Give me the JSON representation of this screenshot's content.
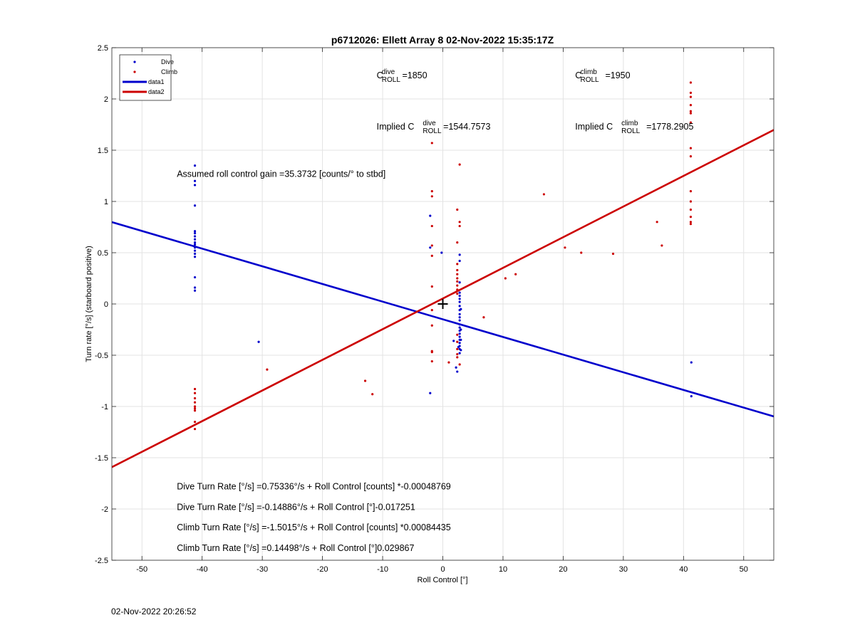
{
  "chart_data": {
    "type": "scatter",
    "title": "p6712026: Ellett Array 8 02-Nov-2022 15:35:17Z",
    "xlabel": "Roll Control [°]",
    "ylabel": "Turn rate [°/s] (starboard positive)",
    "xlim": [
      -55,
      55
    ],
    "ylim": [
      -2.5,
      2.5
    ],
    "grid": true,
    "legend_position": "top-left",
    "xticks": [
      -50,
      -40,
      -30,
      -20,
      -10,
      0,
      10,
      20,
      30,
      40,
      50
    ],
    "yticks": [
      -2.5,
      -2,
      -1.5,
      -1,
      -0.5,
      0,
      0.5,
      1,
      1.5,
      2,
      2.5
    ],
    "xtick_labels": [
      "-50",
      "-40",
      "-30",
      "-20",
      "-10",
      "0",
      "10",
      "20",
      "30",
      "40",
      "50"
    ],
    "ytick_labels": [
      "-2.5",
      "-2",
      "-1.5",
      "-1",
      "-0.5",
      "0",
      "0.5",
      "1",
      "1.5",
      "2",
      "2.5"
    ],
    "legend": [
      {
        "label": "Dive",
        "kind": "dot",
        "color": "#0000cc"
      },
      {
        "label": "Climb",
        "kind": "dot",
        "color": "#cc0000"
      },
      {
        "label": "data1",
        "kind": "line",
        "color": "#0000cc"
      },
      {
        "label": "data2",
        "kind": "line",
        "color": "#cc0000"
      }
    ],
    "series": [
      {
        "name": "Dive",
        "kind": "scatter",
        "color": "#0000cc",
        "points": [
          [
            -41.2,
            1.35
          ],
          [
            -41.2,
            1.2
          ],
          [
            -41.2,
            1.16
          ],
          [
            -41.2,
            0.96
          ],
          [
            -41.2,
            0.71
          ],
          [
            -41.2,
            0.69
          ],
          [
            -41.2,
            0.66
          ],
          [
            -41.2,
            0.63
          ],
          [
            -41.2,
            0.6
          ],
          [
            -41.2,
            0.58
          ],
          [
            -41.2,
            0.55
          ],
          [
            -41.2,
            0.52
          ],
          [
            -41.2,
            0.49
          ],
          [
            -41.2,
            0.46
          ],
          [
            -41.2,
            0.26
          ],
          [
            -41.2,
            0.16
          ],
          [
            -41.2,
            0.13
          ],
          [
            -30.6,
            -0.37
          ],
          [
            -2.1,
            0.86
          ],
          [
            -2.1,
            0.55
          ],
          [
            -2.1,
            -0.87
          ],
          [
            -0.2,
            0.5
          ],
          [
            1.8,
            -0.36
          ],
          [
            2.2,
            -0.62
          ],
          [
            2.4,
            -0.66
          ],
          [
            2.6,
            -0.42
          ],
          [
            2.8,
            0.48
          ],
          [
            2.8,
            0.42
          ],
          [
            2.8,
            0.21
          ],
          [
            2.8,
            0.11
          ],
          [
            2.8,
            0.08
          ],
          [
            2.8,
            0.05
          ],
          [
            2.8,
            0.02
          ],
          [
            2.8,
            -0.02
          ],
          [
            2.8,
            -0.06
          ],
          [
            2.8,
            -0.1
          ],
          [
            2.8,
            -0.13
          ],
          [
            2.8,
            -0.16
          ],
          [
            2.8,
            -0.2
          ],
          [
            2.8,
            -0.23
          ],
          [
            2.8,
            -0.26
          ],
          [
            2.8,
            -0.29
          ],
          [
            2.8,
            -0.32
          ],
          [
            2.8,
            -0.35
          ],
          [
            2.8,
            -0.38
          ],
          [
            2.8,
            -0.41
          ],
          [
            2.8,
            -0.44
          ],
          [
            2.8,
            -0.48
          ],
          [
            3.0,
            -0.05
          ],
          [
            3.0,
            -0.25
          ],
          [
            3.0,
            -0.35
          ],
          [
            3.0,
            -0.45
          ],
          [
            41.3,
            -0.57
          ],
          [
            41.3,
            -0.9
          ]
        ]
      },
      {
        "name": "Climb",
        "kind": "scatter",
        "color": "#cc0000",
        "points": [
          [
            -41.2,
            -0.83
          ],
          [
            -41.2,
            -0.87
          ],
          [
            -41.2,
            -0.92
          ],
          [
            -41.2,
            -0.96
          ],
          [
            -41.2,
            -1.0
          ],
          [
            -41.2,
            -1.02
          ],
          [
            -41.2,
            -1.04
          ],
          [
            -41.2,
            -1.15
          ],
          [
            -41.2,
            -1.22
          ],
          [
            -29.2,
            -0.64
          ],
          [
            -12.9,
            -0.75
          ],
          [
            -11.7,
            -0.88
          ],
          [
            -1.8,
            1.57
          ],
          [
            -1.8,
            1.1
          ],
          [
            -1.8,
            1.05
          ],
          [
            -1.8,
            0.76
          ],
          [
            -1.8,
            0.57
          ],
          [
            -1.8,
            0.47
          ],
          [
            -1.8,
            0.17
          ],
          [
            -1.8,
            -0.06
          ],
          [
            -1.8,
            -0.21
          ],
          [
            -1.8,
            -0.46
          ],
          [
            -1.8,
            -0.47
          ],
          [
            -1.8,
            -0.56
          ],
          [
            1.0,
            -0.57
          ],
          [
            2.4,
            0.92
          ],
          [
            2.4,
            0.6
          ],
          [
            2.4,
            0.39
          ],
          [
            2.4,
            0.33
          ],
          [
            2.4,
            0.29
          ],
          [
            2.4,
            0.25
          ],
          [
            2.4,
            0.22
          ],
          [
            2.4,
            0.18
          ],
          [
            2.4,
            0.14
          ],
          [
            2.4,
            0.1
          ],
          [
            2.4,
            -0.3
          ],
          [
            2.4,
            -0.37
          ],
          [
            2.4,
            -0.44
          ],
          [
            2.4,
            -0.49
          ],
          [
            2.4,
            -0.52
          ],
          [
            2.8,
            1.36
          ],
          [
            2.8,
            0.8
          ],
          [
            2.8,
            0.76
          ],
          [
            2.8,
            -0.59
          ],
          [
            6.8,
            -0.13
          ],
          [
            10.4,
            0.25
          ],
          [
            12.1,
            0.29
          ],
          [
            16.8,
            1.07
          ],
          [
            20.3,
            0.55
          ],
          [
            23.0,
            0.5
          ],
          [
            28.3,
            0.49
          ],
          [
            35.6,
            0.8
          ],
          [
            36.4,
            0.57
          ],
          [
            41.2,
            2.16
          ],
          [
            41.2,
            2.06
          ],
          [
            41.2,
            2.02
          ],
          [
            41.2,
            1.94
          ],
          [
            41.2,
            1.88
          ],
          [
            41.2,
            1.86
          ],
          [
            41.2,
            1.77
          ],
          [
            41.2,
            1.52
          ],
          [
            41.2,
            1.44
          ],
          [
            41.2,
            1.1
          ],
          [
            41.2,
            1.0
          ],
          [
            41.2,
            0.92
          ],
          [
            41.2,
            0.85
          ],
          [
            41.2,
            0.8
          ],
          [
            41.2,
            0.78
          ]
        ]
      },
      {
        "name": "data1",
        "kind": "line",
        "color": "#0000cc",
        "x": [
          -55,
          55
        ],
        "y": [
          0.7982,
          -1.0973
        ]
      },
      {
        "name": "data2",
        "kind": "line",
        "color": "#cc0000",
        "x": [
          -55,
          55
        ],
        "y": [
          -1.5918,
          1.6978
        ]
      }
    ],
    "marker": {
      "symbol": "+",
      "x": 0,
      "y": 0
    },
    "annotations": [
      {
        "id": "c-dive",
        "pre": "C",
        "sup": "dive",
        "sub": "ROLL",
        "post": " =1850",
        "x": -11,
        "y": 2.2
      },
      {
        "id": "c-climb",
        "pre": "C",
        "sup": "climb",
        "sub": "ROLL",
        "post": " =1950",
        "x": 22,
        "y": 2.2
      },
      {
        "id": "implied-dive",
        "pre": "Implied C",
        "sup": "dive",
        "sub": "ROLL",
        "post": " =1544.7573",
        "x": -11,
        "y": 1.7
      },
      {
        "id": "implied-climb",
        "pre": "Implied C",
        "sup": "climb",
        "sub": "ROLL",
        "post": " =1778.2905",
        "x": 22,
        "y": 1.7
      },
      {
        "id": "gain",
        "text": "Assumed roll control gain =35.3732 [counts/° to stbd]",
        "x": -44.2,
        "y": 1.24
      },
      {
        "id": "dive-counts",
        "text": "Dive Turn Rate [°/s] =0.75336°/s + Roll Control [counts] *-0.00048769",
        "x": -44.2,
        "y": -1.81
      },
      {
        "id": "dive-deg",
        "text": "Dive Turn Rate [°/s] =-0.14886°/s + Roll Control [°]-0.017251",
        "x": -44.2,
        "y": -2.01
      },
      {
        "id": "climb-counts",
        "text": "Climb Turn Rate [°/s] =-1.5015°/s + Roll Control [counts] *0.00084435",
        "x": -44.2,
        "y": -2.21
      },
      {
        "id": "climb-deg",
        "text": "Climb Turn Rate [°/s] =0.14498°/s + Roll Control [°]0.029867",
        "x": -44.2,
        "y": -2.41
      }
    ]
  },
  "footer": {
    "timestamp": "02-Nov-2022 20:26:52"
  }
}
